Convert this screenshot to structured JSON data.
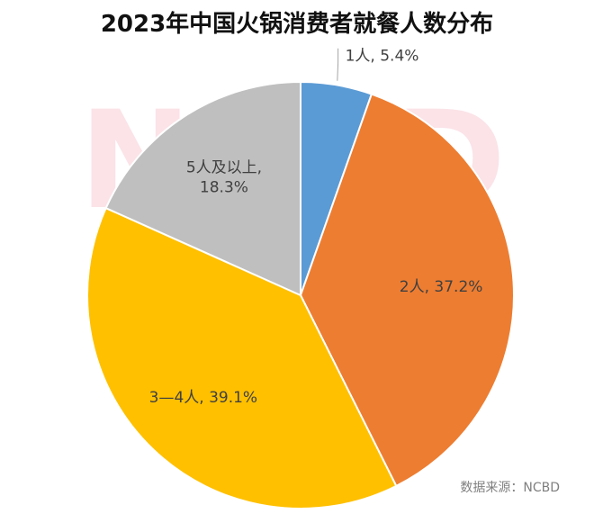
{
  "chart_data": {
    "type": "pie",
    "title": "2023年中国火锅消费者就餐人数分布",
    "categories": [
      "1人",
      "2人",
      "3—4人",
      "5人及以上"
    ],
    "values": [
      5.4,
      37.2,
      39.1,
      18.3
    ],
    "colors": [
      "#5B9BD5",
      "#ED7D31",
      "#FFC000",
      "#BFBFBF"
    ],
    "data_labels": [
      [
        "1人, 5.4%"
      ],
      [
        "2人, 37.2%"
      ],
      [
        "3—4人, 39.1%"
      ],
      [
        "5人及以上,",
        "18.3%"
      ]
    ],
    "source": "数据来源：NCBD",
    "watermark": "NCBD"
  }
}
